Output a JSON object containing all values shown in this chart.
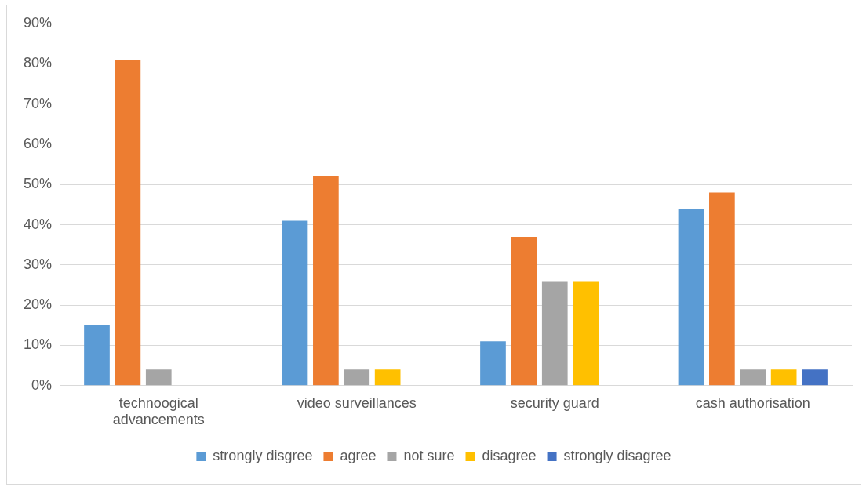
{
  "chart_data": {
    "type": "bar",
    "categories": [
      "technoogical advancements",
      "video surveillances",
      "security guard",
      "cash authorisation"
    ],
    "series": [
      {
        "name": "strongly disgree",
        "color": "#5b9bd5",
        "values": [
          15,
          41,
          11,
          44
        ]
      },
      {
        "name": "agree",
        "color": "#ed7d31",
        "values": [
          81,
          52,
          37,
          48
        ]
      },
      {
        "name": "not sure",
        "color": "#a5a5a5",
        "values": [
          4,
          4,
          26,
          4
        ]
      },
      {
        "name": "disagree",
        "color": "#ffc000",
        "values": [
          null,
          4,
          26,
          4
        ]
      },
      {
        "name": "strongly disagree",
        "color": "#4472c4",
        "values": [
          null,
          null,
          null,
          4
        ]
      }
    ],
    "ylim": [
      0,
      90
    ],
    "yticks": [
      {
        "value": 0,
        "label": "0%"
      },
      {
        "value": 10,
        "label": "10%"
      },
      {
        "value": 20,
        "label": "20%"
      },
      {
        "value": 30,
        "label": "30%"
      },
      {
        "value": 40,
        "label": "40%"
      },
      {
        "value": 50,
        "label": "50%"
      },
      {
        "value": 60,
        "label": "60%"
      },
      {
        "value": 70,
        "label": "70%"
      },
      {
        "value": 80,
        "label": "80%"
      },
      {
        "value": 90,
        "label": "90%"
      }
    ],
    "grid": "y",
    "legend": "bottom"
  }
}
